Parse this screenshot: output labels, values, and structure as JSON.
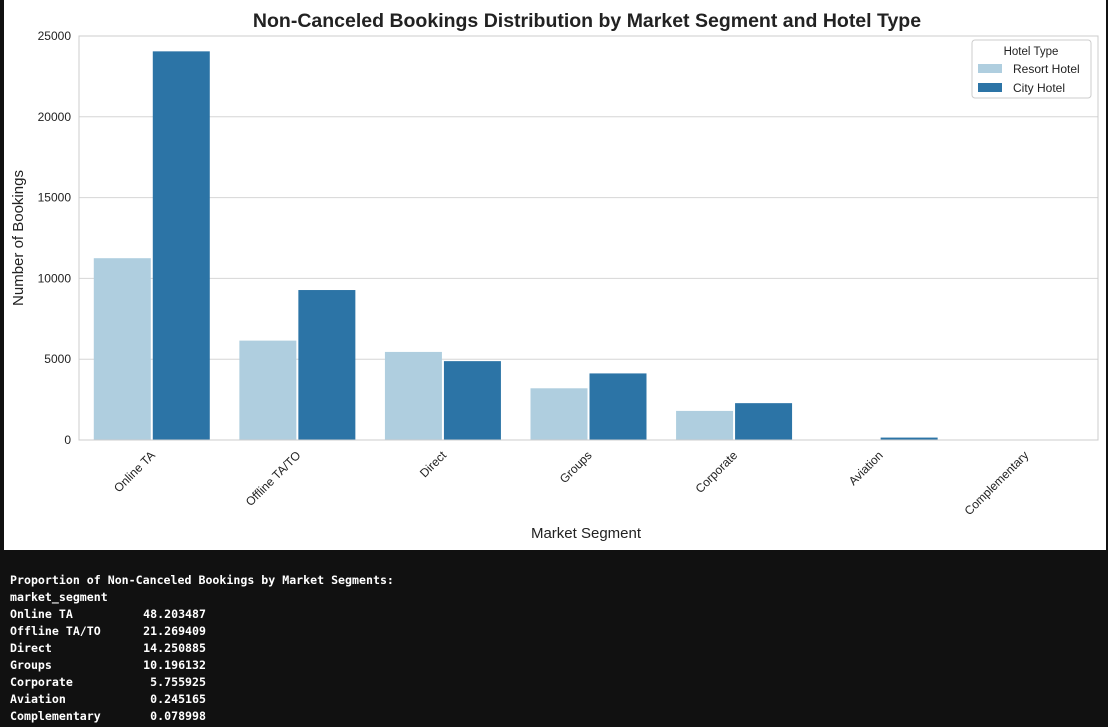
{
  "chart_data": {
    "type": "bar",
    "title": "Non-Canceled Bookings Distribution by Market Segment and Hotel Type",
    "xlabel": "Market Segment",
    "ylabel": "Number of Bookings",
    "ylim": [
      0,
      25000
    ],
    "yticks": [
      "0",
      "5000",
      "10000",
      "15000",
      "20000",
      "25000"
    ],
    "categories": [
      "Online TA",
      "Offline TA/TO",
      "Direct",
      "Groups",
      "Corporate",
      "Aviation",
      "Complementary"
    ],
    "series": [
      {
        "name": "Resort Hotel",
        "color": "#afcedf",
        "values": [
          11250,
          6150,
          5450,
          3200,
          1800,
          0,
          0
        ]
      },
      {
        "name": "City Hotel",
        "color": "#2c74a6",
        "values": [
          24050,
          9280,
          4880,
          4120,
          2280,
          150,
          0
        ]
      }
    ],
    "legend": {
      "title": "Hotel Type",
      "placement": "top-right"
    },
    "grid": "horizontal"
  },
  "console": {
    "heading": "Proportion of Non-Canceled Bookings by Market Segments:",
    "index_name": "market_segment",
    "rows": [
      {
        "segment": "Online TA",
        "value": "48.203487"
      },
      {
        "segment": "Offline TA/TO",
        "value": "21.269409"
      },
      {
        "segment": "Direct",
        "value": "14.250885"
      },
      {
        "segment": "Groups",
        "value": "10.196132"
      },
      {
        "segment": "Corporate",
        "value": "5.755925"
      },
      {
        "segment": "Aviation",
        "value": "0.245165"
      },
      {
        "segment": "Complementary",
        "value": "0.078998"
      }
    ]
  }
}
